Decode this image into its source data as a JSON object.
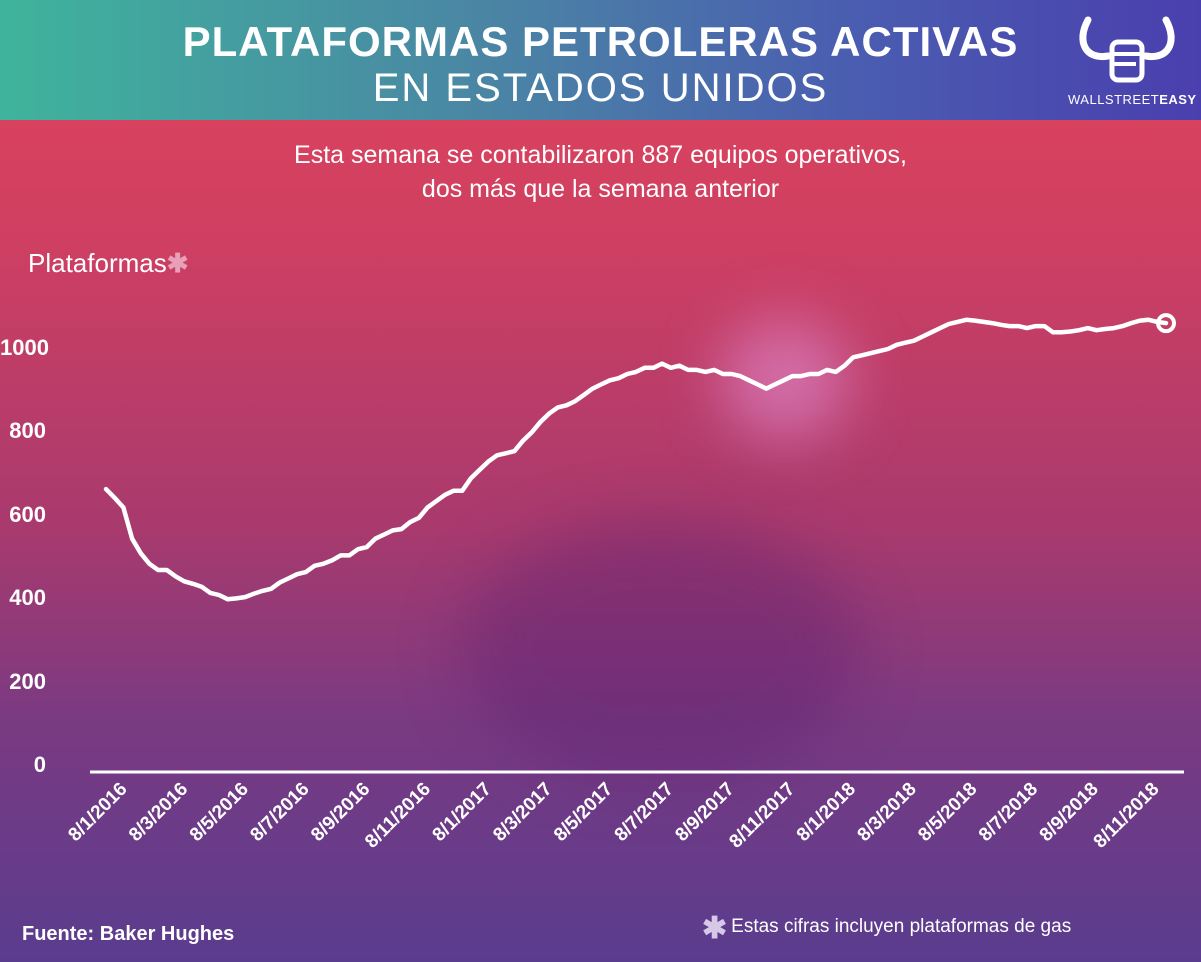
{
  "header": {
    "title_line1": "PLATAFORMAS PETROLERAS ACTIVAS",
    "title_line2": "EN ESTADOS UNIDOS",
    "logo_text_light": "WALLSTREET",
    "logo_text_bold": "EASY",
    "logo_icon": "bull-fist-icon"
  },
  "subtitle": {
    "line1": "Esta semana se contabilizaron 887 equipos operativos,",
    "line2": "dos más que la semana anterior"
  },
  "footer": {
    "source": "Fuente: Baker Hughes",
    "note": "Estas cifras incluyen plataformas de gas",
    "note_marker": "✱"
  },
  "colors": {
    "header_start": "#3fb49c",
    "header_end": "#4a3fae",
    "line": "#ffffff",
    "asterisk": "#e8a0b8"
  },
  "chart_data": {
    "type": "line",
    "title": "PLATAFORMAS PETROLERAS ACTIVAS EN ESTADOS UNIDOS",
    "ylabel": "Plataformas",
    "ylabel_marker": "✱",
    "ylim": [
      0,
      1080
    ],
    "yticks": [
      0,
      200,
      400,
      600,
      800,
      1000
    ],
    "grid": false,
    "legend": "none",
    "xtick_labels": [
      "8/1/2016",
      "8/3/2016",
      "8/5/2016",
      "8/7/2016",
      "8/9/2016",
      "8/11/2016",
      "8/1/2017",
      "8/3/2017",
      "8/5/2017",
      "8/7/2017",
      "8/9/2017",
      "8/11/2017",
      "8/1/2018",
      "8/3/2018",
      "8/5/2018",
      "8/7/2018",
      "8/9/2018",
      "8/11/2018"
    ],
    "series": [
      {
        "values": [
          664,
          643,
          620,
          545,
          510,
          485,
          470,
          470,
          455,
          443,
          437,
          430,
          415,
          410,
          400,
          402,
          405,
          413,
          420,
          425,
          440,
          450,
          460,
          465,
          480,
          485,
          493,
          505,
          505,
          520,
          525,
          545,
          555,
          565,
          568,
          585,
          595,
          620,
          635,
          650,
          660,
          660,
          690,
          710,
          730,
          745,
          750,
          755,
          780,
          800,
          825,
          845,
          860,
          865,
          875,
          890,
          905,
          915,
          925,
          930,
          940,
          945,
          955,
          955,
          965,
          955,
          960,
          950,
          950,
          945,
          950,
          940,
          940,
          935,
          925,
          915,
          905,
          915,
          925,
          935,
          935,
          940,
          940,
          950,
          945,
          960,
          980,
          985,
          990,
          995,
          1000,
          1010,
          1015,
          1020,
          1030,
          1040,
          1050,
          1060,
          1065,
          1070,
          1068,
          1065,
          1062,
          1058,
          1055,
          1055,
          1050,
          1055,
          1055,
          1040,
          1040,
          1042,
          1045,
          1050,
          1045,
          1048,
          1050,
          1055,
          1062,
          1068,
          1070,
          1065,
          1062
        ]
      }
    ]
  }
}
